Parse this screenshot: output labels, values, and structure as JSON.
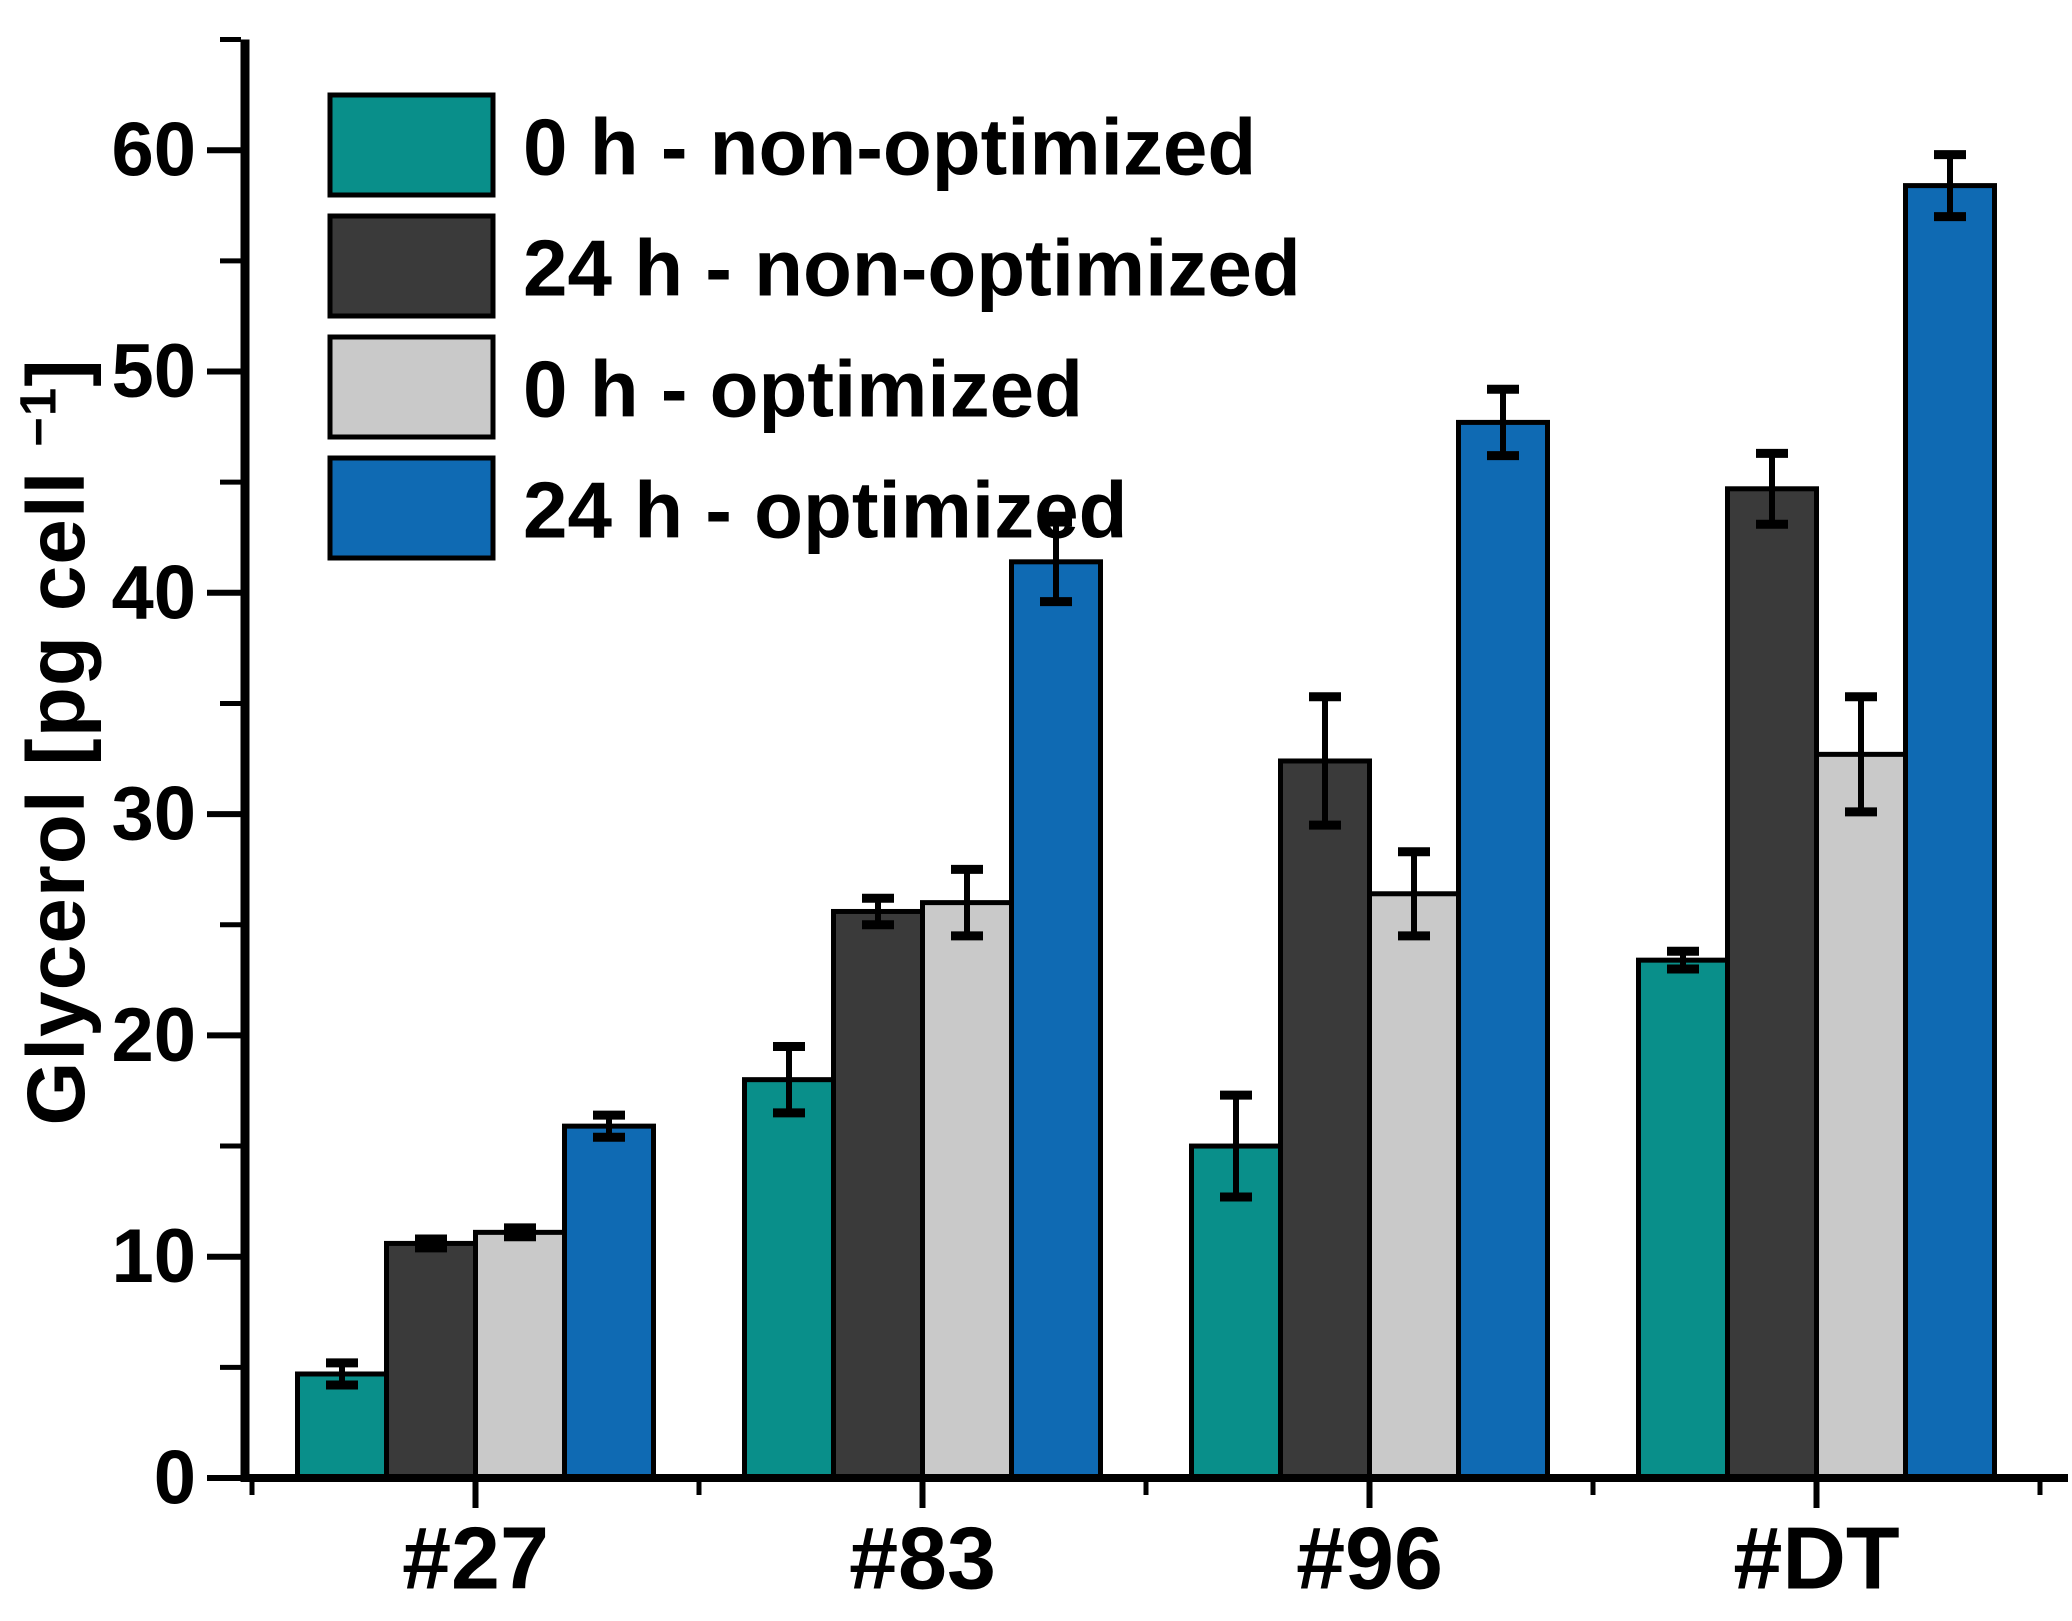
{
  "chart_data": {
    "type": "bar",
    "title": "",
    "ylabel_text": "Glycerol [pg cell −1]",
    "ylabel_parts": {
      "pre": "Glycerol [pg cell ",
      "sup": "−1",
      "post": "]"
    },
    "categories": [
      "#27",
      "#83",
      "#96",
      "#DT"
    ],
    "series": [
      {
        "name": "0 h - non-optimized",
        "color": "#098f8a",
        "values": [
          4.7,
          18.0,
          15.0,
          23.4
        ],
        "errors": [
          0.5,
          1.5,
          2.3,
          0.4
        ]
      },
      {
        "name": "24 h - non-optimized",
        "color": "#3a3a3a",
        "values": [
          10.6,
          25.6,
          32.4,
          44.7
        ],
        "errors": [
          0.2,
          0.6,
          2.9,
          1.6
        ]
      },
      {
        "name": "0 h - optimized",
        "color": "#c9c9c9",
        "values": [
          11.1,
          26.0,
          26.4,
          32.7
        ],
        "errors": [
          0.2,
          1.5,
          1.9,
          2.6
        ]
      },
      {
        "name": "24 h - optimized",
        "color": "#0f6ab3",
        "values": [
          15.9,
          41.4,
          47.7,
          58.4
        ],
        "errors": [
          0.5,
          1.8,
          1.5,
          1.4
        ]
      }
    ],
    "y_axis": {
      "min": 0,
      "max": 65,
      "major_ticks": [
        0,
        10,
        20,
        30,
        40,
        50,
        60
      ],
      "minor_step": 5
    },
    "x_axis": {
      "tick_labels": [
        "#27",
        "#83",
        "#96",
        "#DT"
      ]
    },
    "legend": {
      "position": "top-left",
      "entries": [
        "0 h - non-optimized",
        "24 h - non-optimized",
        "0 h - optimized",
        "24 h - optimized"
      ]
    },
    "colors": {
      "axis": "#000000",
      "background": "#ffffff"
    }
  }
}
